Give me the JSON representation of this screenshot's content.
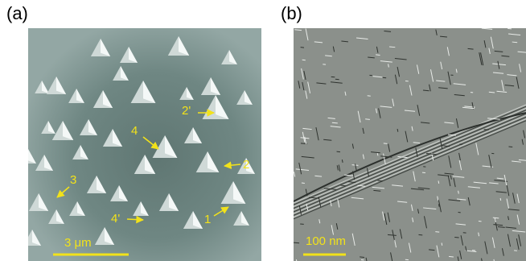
{
  "panels": [
    {
      "label": "(a)",
      "annotations": [
        "2'",
        "4",
        "2",
        "3",
        "4'",
        "1"
      ],
      "scale_bar": "3 μm"
    },
    {
      "label": "(b)",
      "scale_bar": "100 nm"
    }
  ]
}
